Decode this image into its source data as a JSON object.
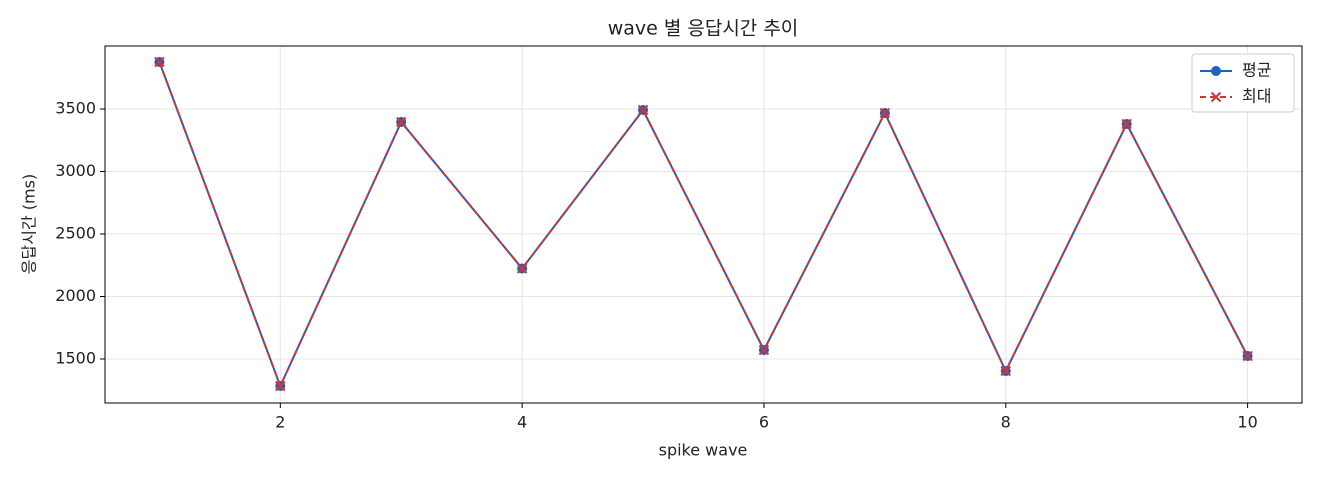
{
  "chart_data": {
    "type": "line",
    "title": "wave 별 응답시간 추이",
    "xlabel": "spike wave",
    "ylabel": "응답시간 (ms)",
    "x": [
      1,
      2,
      3,
      4,
      5,
      6,
      7,
      8,
      9,
      10
    ],
    "series": [
      {
        "name": "평균",
        "color": "#1f62b8",
        "linestyle": "solid",
        "marker": "circle",
        "values": [
          3876,
          1284,
          3396,
          2224,
          3492,
          1572,
          3468,
          1404,
          3380,
          1524
        ]
      },
      {
        "name": "최대",
        "color": "#d0353a",
        "linestyle": "dashed",
        "marker": "x",
        "values": [
          3876,
          1284,
          3396,
          2224,
          3492,
          1572,
          3468,
          1404,
          3380,
          1524
        ]
      }
    ],
    "xlim": [
      0.55,
      10.45
    ],
    "ylim": [
      1148,
      4004
    ],
    "xticks": [
      2,
      4,
      6,
      8,
      10
    ],
    "yticks": [
      1500,
      2000,
      2500,
      3000,
      3500
    ],
    "grid": true,
    "legend": "upper right"
  }
}
